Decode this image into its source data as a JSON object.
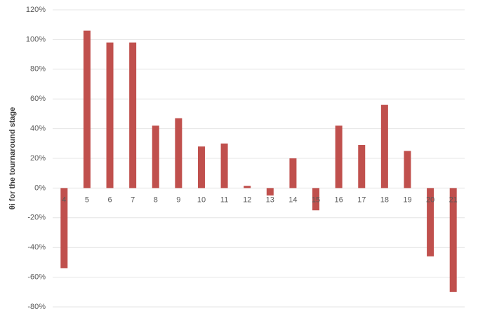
{
  "chart_data": {
    "type": "bar",
    "y_label": "θi for the tournaround stage",
    "categories": [
      "4",
      "5",
      "6",
      "7",
      "8",
      "9",
      "10",
      "11",
      "12",
      "13",
      "14",
      "15",
      "16",
      "17",
      "18",
      "19",
      "20",
      "21"
    ],
    "values": [
      -54,
      106,
      98,
      98,
      42,
      47,
      28,
      30,
      1.5,
      -5,
      20,
      -15,
      42,
      29,
      56,
      25,
      -46,
      -70
    ],
    "color": "#c0504d",
    "ylim": [
      -80,
      120
    ],
    "yticks": [
      {
        "value": -80,
        "label": "-80%"
      },
      {
        "value": -60,
        "label": "-60%"
      },
      {
        "value": -40,
        "label": "-40%"
      },
      {
        "value": -20,
        "label": "-20%"
      },
      {
        "value": 0,
        "label": "0%"
      },
      {
        "value": 20,
        "label": "20%"
      },
      {
        "value": 40,
        "label": "40%"
      },
      {
        "value": 60,
        "label": "60%"
      },
      {
        "value": 80,
        "label": "80%"
      },
      {
        "value": 100,
        "label": "100%"
      },
      {
        "value": 120,
        "label": "120%"
      }
    ],
    "grid": true
  }
}
